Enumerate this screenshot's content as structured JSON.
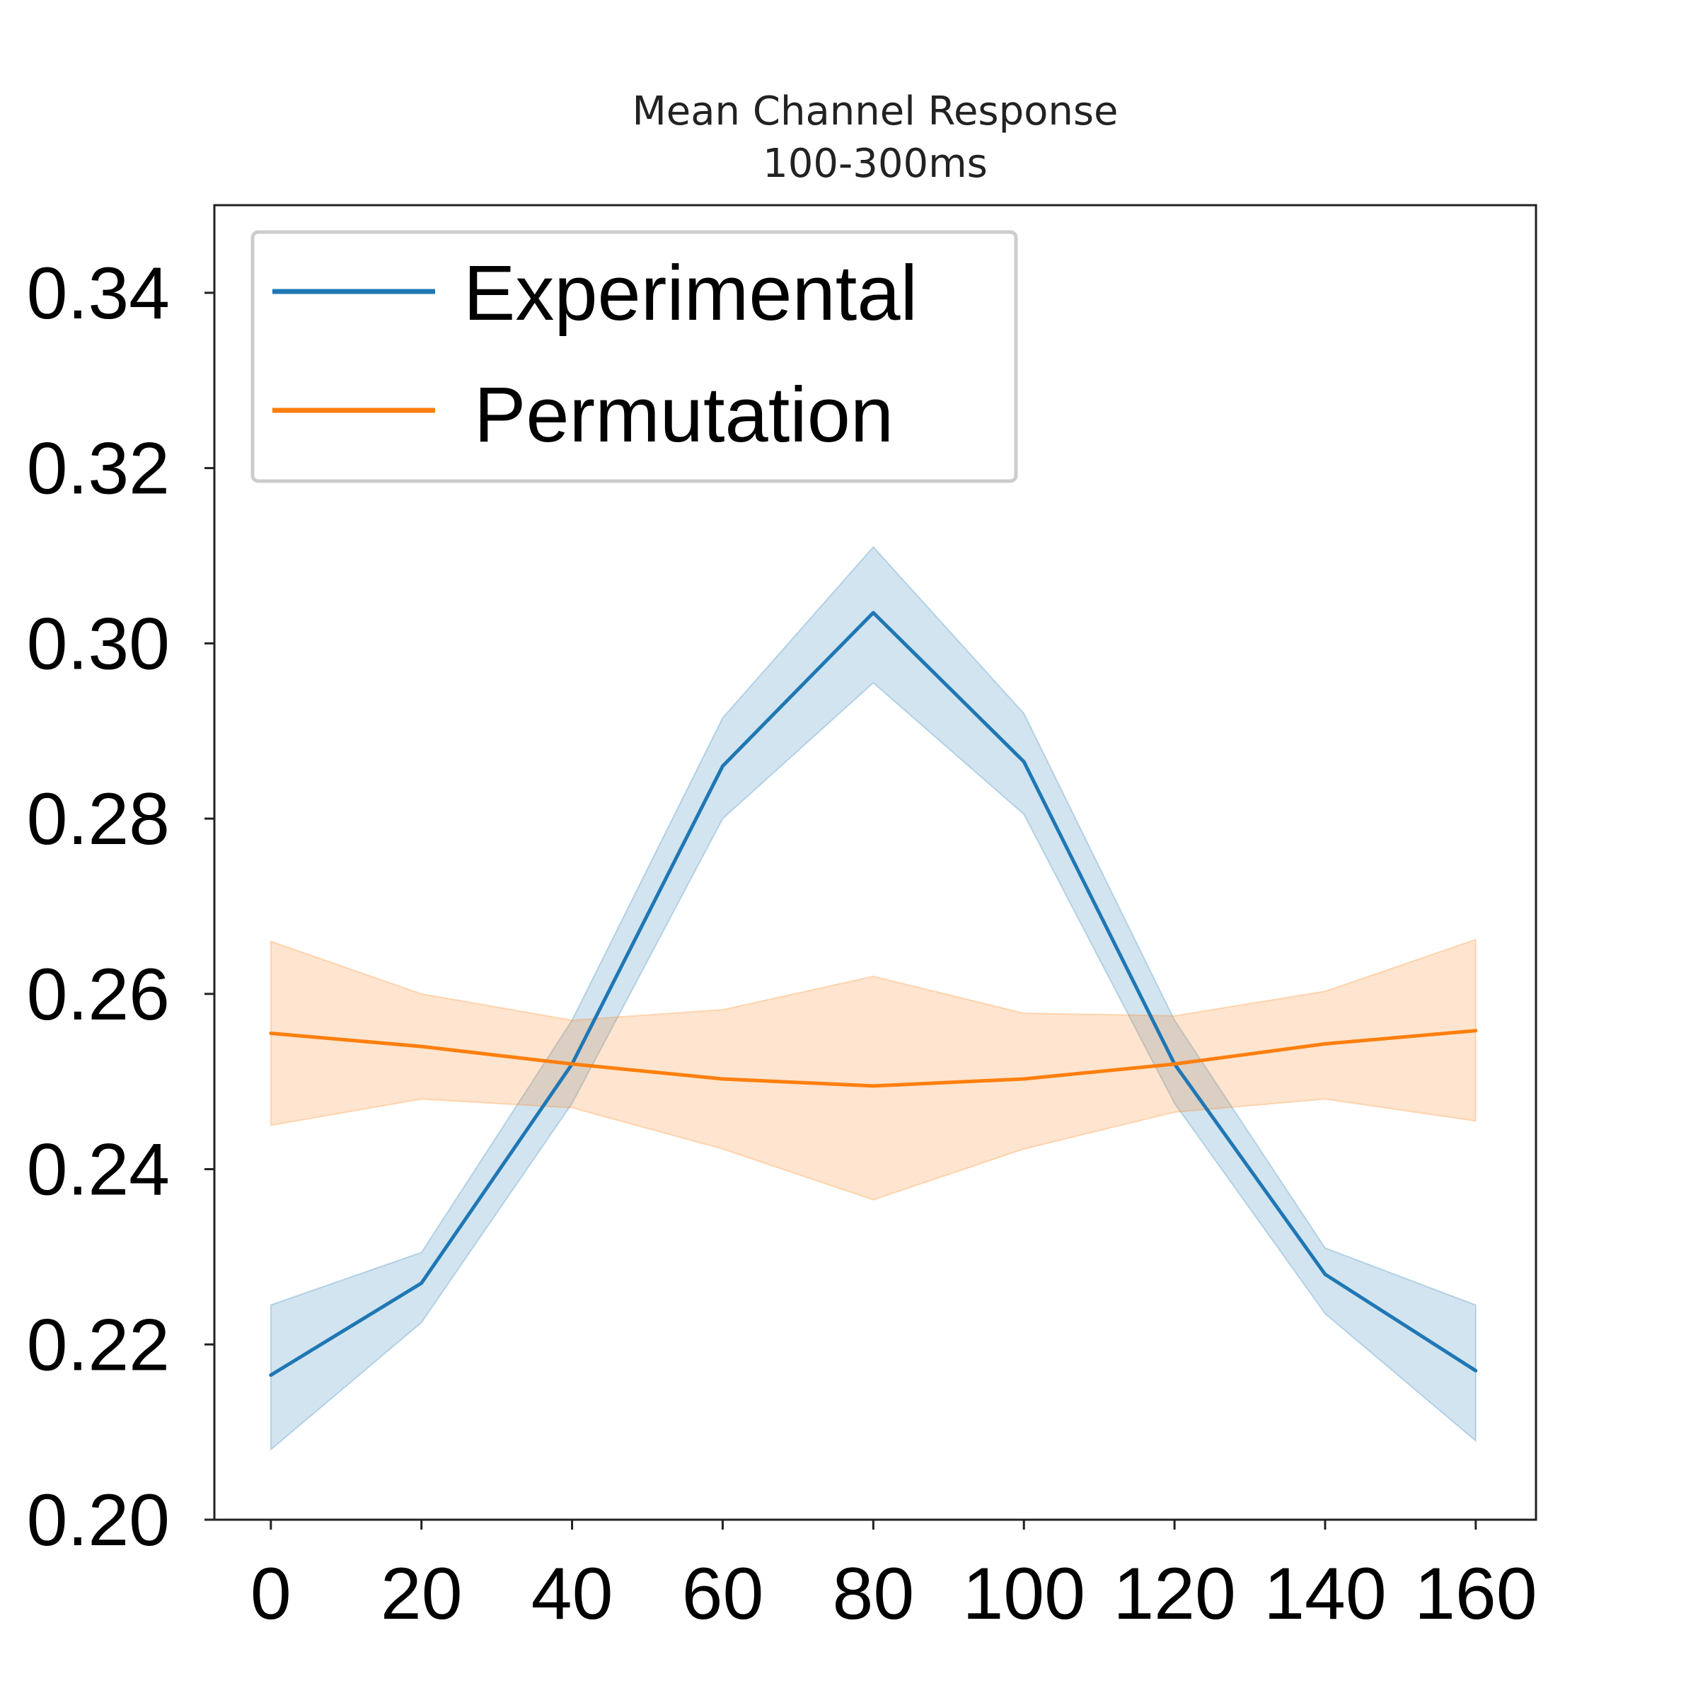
{
  "chart_data": {
    "type": "line",
    "title": "Mean Channel Response",
    "subtitle": "100-300ms",
    "xlabel": "",
    "ylabel": "",
    "x": [
      0,
      20,
      40,
      60,
      80,
      100,
      120,
      140,
      160
    ],
    "xticks": [
      "0",
      "20",
      "40",
      "60",
      "80",
      "100",
      "120",
      "140",
      "160"
    ],
    "yticks": [
      "0.20",
      "0.22",
      "0.24",
      "0.26",
      "0.28",
      "0.30",
      "0.32",
      "0.34"
    ],
    "xlim": [
      -7.5,
      168
    ],
    "ylim": [
      0.2,
      0.35
    ],
    "grid": false,
    "legend_position": "top-left",
    "series": [
      {
        "name": "Experimental",
        "color": "#1f77b4",
        "values": [
          0.2165,
          0.227,
          0.252,
          0.286,
          0.3035,
          0.2865,
          0.252,
          0.228,
          0.217
        ],
        "lower": [
          0.208,
          0.2225,
          0.2475,
          0.28,
          0.2955,
          0.2805,
          0.2475,
          0.2235,
          0.209
        ],
        "upper": [
          0.2245,
          0.2305,
          0.257,
          0.2915,
          0.311,
          0.292,
          0.257,
          0.231,
          0.2245
        ]
      },
      {
        "name": "Permutation",
        "color": "#ff7f0e",
        "values": [
          0.2555,
          0.254,
          0.252,
          0.2503,
          0.2495,
          0.2503,
          0.252,
          0.2543,
          0.2558
        ],
        "lower": [
          0.245,
          0.248,
          0.247,
          0.2423,
          0.2365,
          0.2423,
          0.2465,
          0.248,
          0.2455
        ],
        "upper": [
          0.266,
          0.26,
          0.257,
          0.2582,
          0.262,
          0.2578,
          0.2575,
          0.2603,
          0.2662
        ]
      }
    ]
  }
}
